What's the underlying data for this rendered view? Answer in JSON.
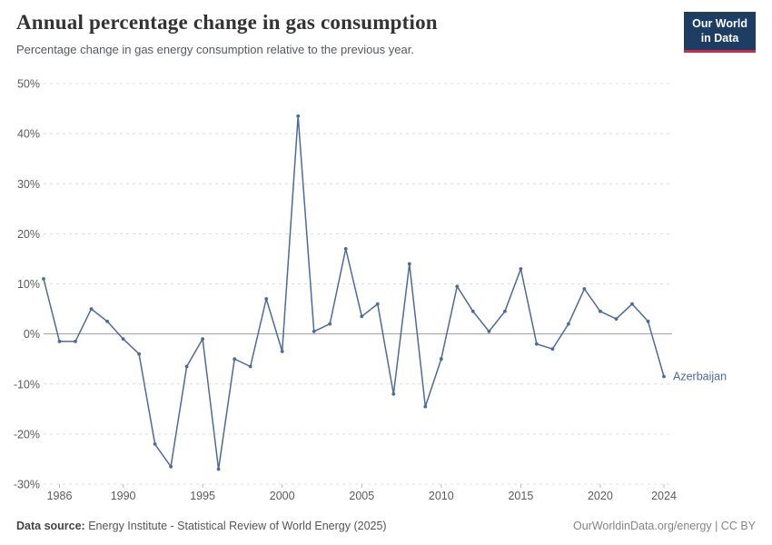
{
  "header": {
    "title": "Annual percentage change in gas consumption",
    "subtitle": "Percentage change in gas energy consumption relative to the previous year.",
    "logo": {
      "line1": "Our World",
      "line2": "in Data",
      "bg": "#1d3d63",
      "accent": "#d7263d"
    }
  },
  "chart_data": {
    "type": "line",
    "title": "Annual percentage change in gas consumption",
    "series_label": "Azerbaijan",
    "line_color": "#4c6a9c",
    "grid": true,
    "ylim": [
      -30,
      50
    ],
    "yticks": [
      -30,
      -20,
      -10,
      0,
      10,
      20,
      30,
      40,
      50
    ],
    "ytick_suffix": "%",
    "xticks": [
      1986,
      1990,
      1995,
      2000,
      2005,
      2010,
      2015,
      2020,
      2024
    ],
    "x": [
      1985,
      1986,
      1987,
      1988,
      1989,
      1990,
      1991,
      1992,
      1993,
      1994,
      1995,
      1996,
      1997,
      1998,
      1999,
      2000,
      2001,
      2002,
      2003,
      2004,
      2005,
      2006,
      2007,
      2008,
      2009,
      2010,
      2011,
      2012,
      2013,
      2014,
      2015,
      2016,
      2017,
      2018,
      2019,
      2020,
      2021,
      2022,
      2023,
      2024
    ],
    "values": [
      11,
      -1.5,
      -1.5,
      5,
      2.5,
      -1,
      -4,
      -22,
      -26.5,
      -6.5,
      -1,
      -27,
      -5,
      -6.5,
      7,
      -3.5,
      43.5,
      0.5,
      2,
      17,
      3.5,
      6,
      -12,
      14,
      -14.5,
      -5,
      9.5,
      4.5,
      0.5,
      4.5,
      13,
      -2,
      -3,
      2,
      9,
      4.5,
      3,
      6,
      2.5,
      -8.5
    ]
  },
  "footer": {
    "source_label": "Data source:",
    "source_text": " Energy Institute - Statistical Review of World Energy (2025)",
    "right_text": "OurWorldinData.org/energy | CC BY"
  }
}
